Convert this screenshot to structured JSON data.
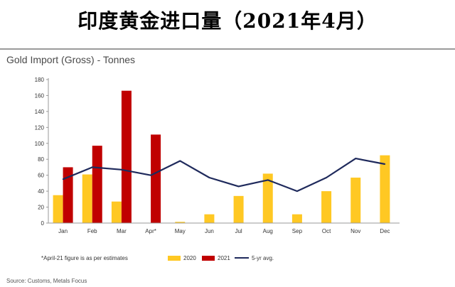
{
  "banner_title": "印度黄金进口量（2021年4月）",
  "subtitle": "Gold Import (Gross) - Tonnes",
  "footnote": "*April-21 figure is as per estimates",
  "source": "Source: Customs, Metals Focus",
  "colors": {
    "s2020": "#FFC823",
    "s2021": "#C00000",
    "avg": "#1F2A5C",
    "grid": "#e2e2e2",
    "axis": "#999999"
  },
  "chart_data": {
    "type": "bar",
    "title": "Gold Import (Gross) - Tonnes",
    "categories": [
      "Jan",
      "Feb",
      "Mar",
      "Apr*",
      "May",
      "Jun",
      "Jul",
      "Aug",
      "Sep",
      "Oct",
      "Nov",
      "Dec"
    ],
    "yticks": [
      "0",
      "20",
      "40",
      "60",
      "80",
      "100",
      "120",
      "140",
      "160",
      "180"
    ],
    "ylim": [
      0,
      180
    ],
    "grid": false,
    "legend_position": "bottom",
    "series": [
      {
        "name": "2020",
        "type": "bar",
        "values": [
          35,
          61,
          27,
          0,
          1.5,
          11,
          34,
          62,
          11,
          40,
          57,
          85
        ]
      },
      {
        "name": "2021",
        "type": "bar",
        "values": [
          70,
          97,
          166,
          111,
          null,
          null,
          null,
          null,
          null,
          null,
          null,
          null
        ]
      },
      {
        "name": "5-yr avg.",
        "type": "line",
        "values": [
          55,
          70,
          67,
          60,
          78,
          57,
          46,
          54,
          40,
          57,
          81,
          74
        ]
      }
    ]
  }
}
